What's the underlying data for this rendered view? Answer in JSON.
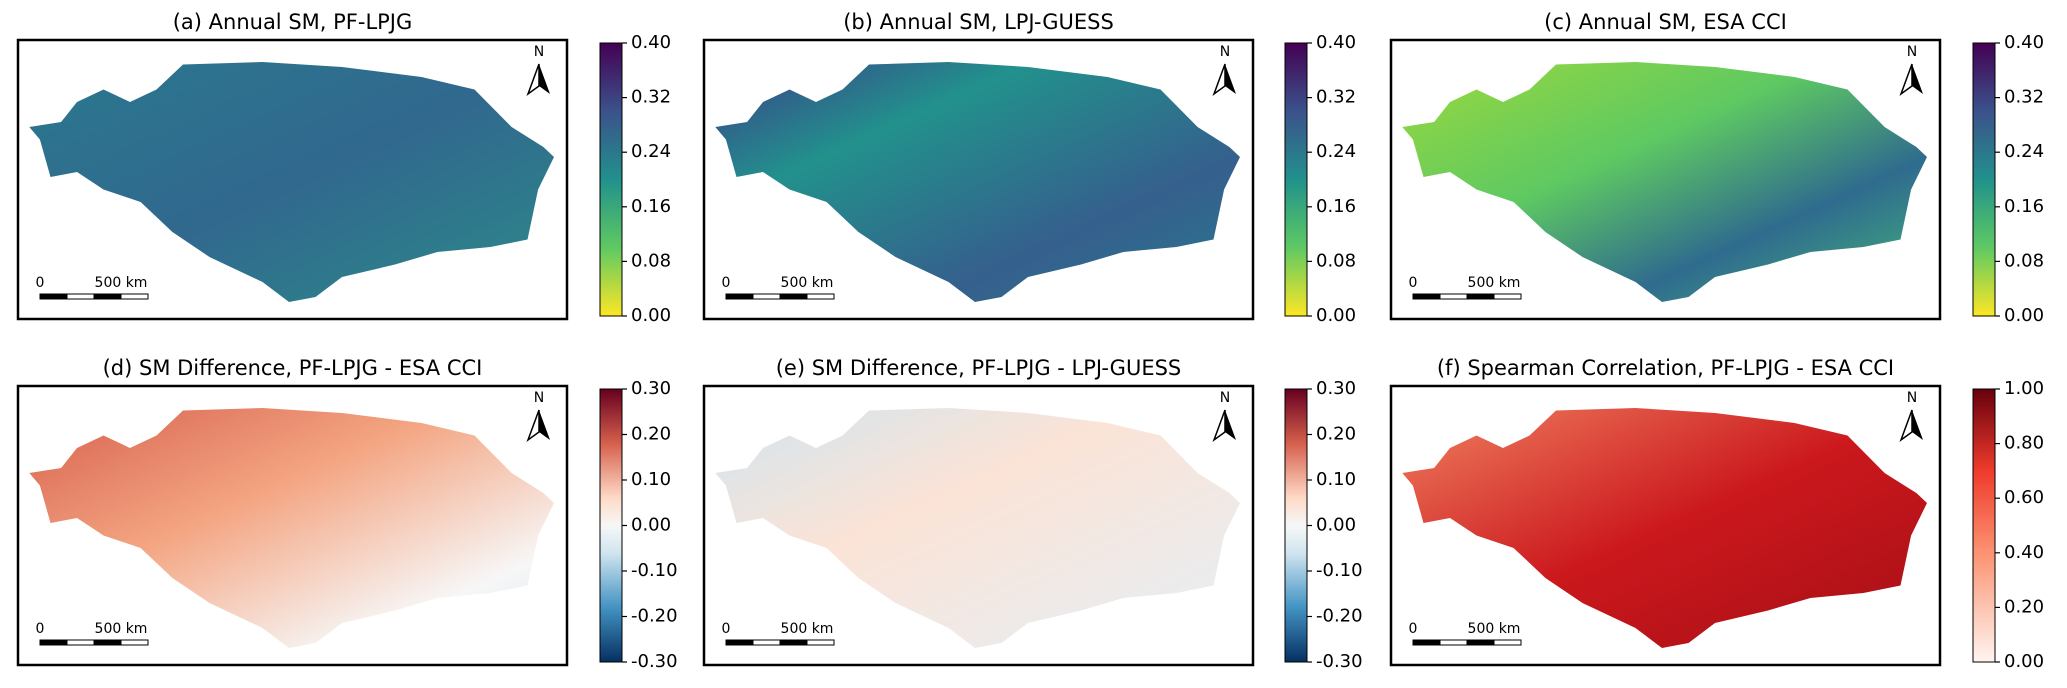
{
  "panels": [
    {
      "title": "(a) Annual SM, PF-LPJG",
      "north": "N",
      "scale": [
        "0",
        "500 km"
      ],
      "colorbar": {
        "ticks": [
          {
            "value": 0.4,
            "label": "0.40"
          },
          {
            "value": 0.32,
            "label": "0.32"
          },
          {
            "value": 0.24,
            "label": "0.24"
          },
          {
            "value": 0.16,
            "label": "0.16"
          },
          {
            "value": 0.08,
            "label": "0.08"
          },
          {
            "value": 0,
            "label": "0.00"
          }
        ]
      }
    },
    {
      "title": "(b) Annual SM, LPJ-GUESS",
      "north": "N",
      "scale": [
        "0",
        "500 km"
      ],
      "colorbar": {
        "ticks": [
          {
            "value": 0.4,
            "label": "0.40"
          },
          {
            "value": 0.32,
            "label": "0.32"
          },
          {
            "value": 0.24,
            "label": "0.24"
          },
          {
            "value": 0.16,
            "label": "0.16"
          },
          {
            "value": 0.08,
            "label": "0.08"
          },
          {
            "value": 0,
            "label": "0.00"
          }
        ]
      }
    },
    {
      "title": "(c) Annual SM, ESA CCI",
      "north": "N",
      "scale": [
        "0",
        "500 km"
      ],
      "colorbar": {
        "ticks": [
          {
            "value": 0.4,
            "label": "0.40"
          },
          {
            "value": 0.32,
            "label": "0.32"
          },
          {
            "value": 0.24,
            "label": "0.24"
          },
          {
            "value": 0.16,
            "label": "0.16"
          },
          {
            "value": 0.08,
            "label": "0.08"
          },
          {
            "value": 0,
            "label": "0.00"
          }
        ]
      }
    },
    {
      "title": "(d) SM Difference, PF-LPJG - ESA CCI",
      "north": "N",
      "scale": [
        "0",
        "500 km"
      ],
      "colorbar": {
        "ticks": [
          {
            "value": 0.3,
            "label": "0.30"
          },
          {
            "value": 0.2,
            "label": "0.20"
          },
          {
            "value": 0.1,
            "label": "0.10"
          },
          {
            "value": 0,
            "label": "0.00"
          },
          {
            "value": -0.1,
            "label": "-0.10"
          },
          {
            "value": -0.2,
            "label": "-0.20"
          },
          {
            "value": -0.3,
            "label": "-0.30"
          }
        ]
      }
    },
    {
      "title": "(e) SM Difference, PF-LPJG - LPJ-GUESS",
      "north": "N",
      "scale": [
        "0",
        "500 km"
      ],
      "colorbar": {
        "ticks": [
          {
            "value": 0.3,
            "label": "0.30"
          },
          {
            "value": 0.2,
            "label": "0.20"
          },
          {
            "value": 0.1,
            "label": "0.10"
          },
          {
            "value": 0,
            "label": "0.00"
          },
          {
            "value": -0.1,
            "label": "-0.10"
          },
          {
            "value": -0.2,
            "label": "-0.20"
          },
          {
            "value": -0.3,
            "label": "-0.30"
          }
        ]
      }
    },
    {
      "title": "(f) Spearman Correlation, PF-LPJG - ESA CCI",
      "north": "N",
      "scale": [
        "0",
        "500 km"
      ],
      "colorbar": {
        "ticks": [
          {
            "value": 1,
            "label": "1.00"
          },
          {
            "value": 0.8,
            "label": "0.80"
          },
          {
            "value": 0.6,
            "label": "0.60"
          },
          {
            "value": 0.4,
            "label": "0.40"
          },
          {
            "value": 0.2,
            "label": "0.20"
          },
          {
            "value": 0,
            "label": "0.00"
          }
        ]
      }
    }
  ]
}
